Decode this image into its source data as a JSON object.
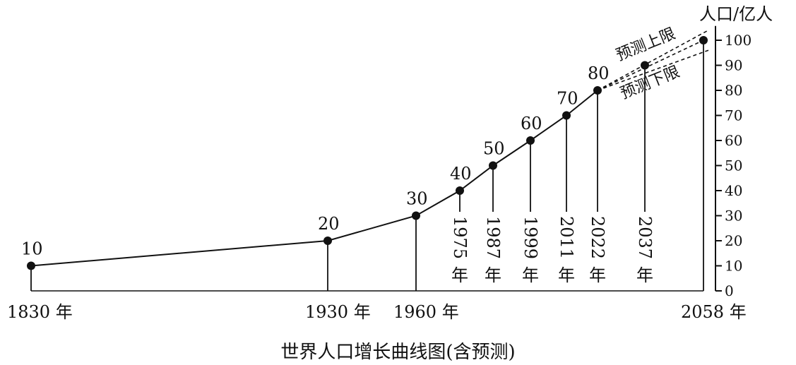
{
  "chart_data": {
    "type": "line",
    "title": "世界人口增长曲线图(含预测)",
    "ylabel": "人口/亿人",
    "ylim": [
      0,
      100
    ],
    "y_ticks": [
      "0",
      "10",
      "20",
      "30",
      "40",
      "50",
      "60",
      "70",
      "80",
      "90",
      "100"
    ],
    "grid": false,
    "points": [
      {
        "year": 1830,
        "value": 10,
        "value_label": "10",
        "year_label": "1830 年",
        "year_label_style": "horizontal"
      },
      {
        "year": 1930,
        "value": 20,
        "value_label": "20",
        "year_label": "1930 年",
        "year_label_style": "horizontal"
      },
      {
        "year": 1960,
        "value": 30,
        "value_label": "30",
        "year_label": "1960 年",
        "year_label_style": "horizontal"
      },
      {
        "year": 1975,
        "value": 40,
        "value_label": "40",
        "year_label": "1975年",
        "year_label_style": "vertical"
      },
      {
        "year": 1987,
        "value": 50,
        "value_label": "50",
        "year_label": "1987年",
        "year_label_style": "vertical"
      },
      {
        "year": 1999,
        "value": 60,
        "value_label": "60",
        "year_label": "1999年",
        "year_label_style": "vertical"
      },
      {
        "year": 2011,
        "value": 70,
        "value_label": "70",
        "year_label": "2011年",
        "year_label_style": "vertical"
      },
      {
        "year": 2022,
        "value": 80,
        "value_label": "80",
        "year_label": "2022年",
        "year_label_style": "vertical"
      }
    ],
    "projection": {
      "start": {
        "year": 2022,
        "value": 80
      },
      "upper_label": "预测上限",
      "lower_label": "预测下限",
      "points": [
        {
          "year": 2037,
          "value": 90,
          "year_label": "2037年",
          "year_label_style": "vertical"
        },
        {
          "year": 2058,
          "value": 100,
          "year_label": "2058 年",
          "year_label_style": "horizontal"
        }
      ],
      "upper_end_value": 104,
      "lower_end_value": 96
    }
  }
}
